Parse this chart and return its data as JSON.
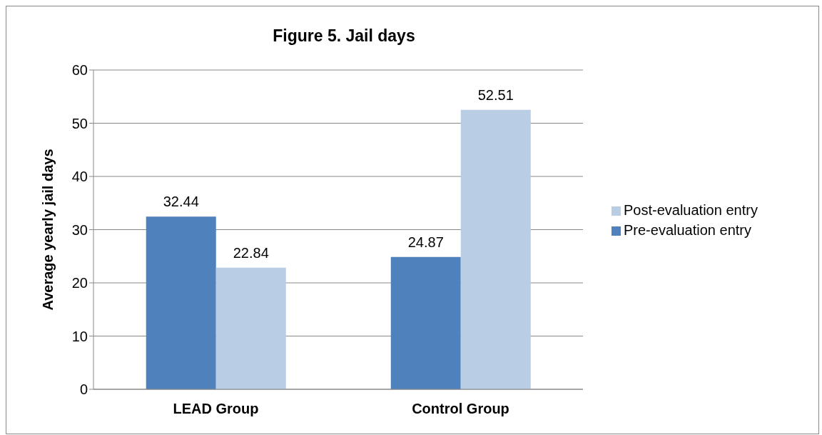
{
  "chart_data": {
    "type": "bar",
    "title": "Figure 5. Jail days",
    "ylabel": "Average yearly jail days",
    "categories": [
      "LEAD Group",
      "Control Group"
    ],
    "series": [
      {
        "name": "Pre-evaluation entry",
        "color": "#4f81bd",
        "values": [
          32.44,
          24.87
        ]
      },
      {
        "name": "Post-evaluation entry",
        "color": "#b9cde5",
        "values": [
          22.84,
          52.51
        ]
      }
    ],
    "ylim": [
      0,
      60
    ],
    "yticks": [
      0,
      10,
      20,
      30,
      40,
      50,
      60
    ],
    "grid": "y",
    "legend": "right",
    "data_labels": true
  }
}
